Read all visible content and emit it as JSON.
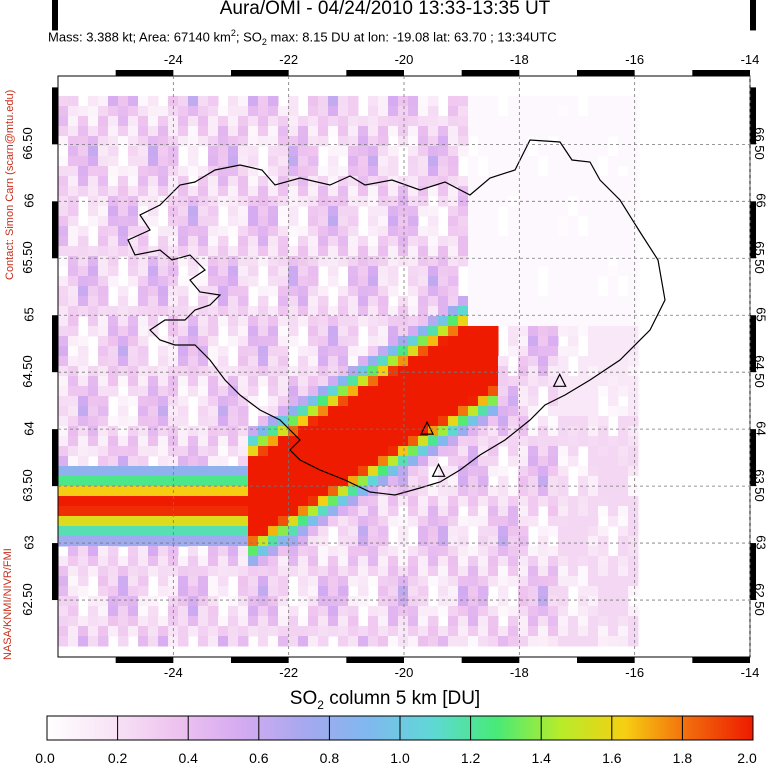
{
  "title": "Aura/OMI - 04/24/2010 13:33-13:35 UT",
  "subtitle": {
    "pre": "Mass: 3.388 kt; Area: 67140 km",
    "sup": "2",
    "mid1": "; SO",
    "sub": "2",
    "post": " max: 8.15 DU at lon: -19.08 lat: 63.70 ; 13:34UTC"
  },
  "contact": "Contact: Simon Carn (scarn@mtu.edu)",
  "credit": "NASA/KNMI/NIVR/FMI",
  "map": {
    "lon_range": [
      -26,
      -14
    ],
    "lat_range": [
      62,
      67.1
    ],
    "lon_ticks": [
      "-24",
      "-22",
      "-20",
      "-18",
      "-16",
      "-14"
    ],
    "lat_ticks": [
      "62.50",
      "63",
      "63.50",
      "64",
      "64.50",
      "65",
      "65.50",
      "66",
      "66.50"
    ],
    "volcano_markers": [
      {
        "lon": -19.6,
        "lat": 64.0
      },
      {
        "lon": -17.3,
        "lat": 64.42
      },
      {
        "lon": -19.4,
        "lat": 63.63
      }
    ]
  },
  "colorbar": {
    "title_pre": "SO",
    "title_sub": "2",
    "title_post": " column 5 km [DU]",
    "ticks": [
      "0.0",
      "0.2",
      "0.4",
      "0.6",
      "0.8",
      "1.0",
      "1.2",
      "1.4",
      "1.6",
      "1.8",
      "2.0"
    ],
    "colors": [
      "#ffffff",
      "#f8e4f6",
      "#eec3ef",
      "#d6abf1",
      "#a7a8ef",
      "#80b8ef",
      "#5fd8d6",
      "#47ea78",
      "#b7ec2a",
      "#f6cf12",
      "#f26a0c",
      "#ee1b00"
    ]
  }
}
